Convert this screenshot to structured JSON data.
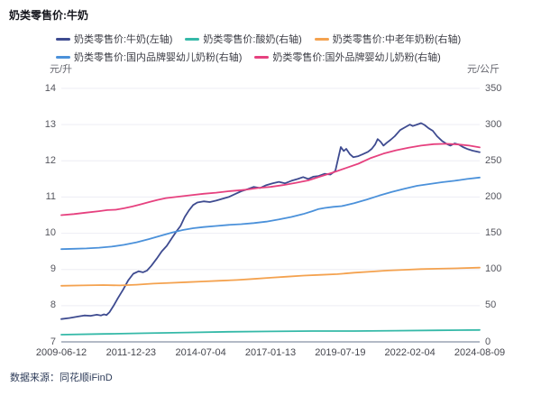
{
  "title": "奶类零售价:牛奶",
  "footer": "数据来源：同花顺iFinD",
  "chart_data": {
    "type": "line",
    "title": "奶类零售价:牛奶",
    "legend_position": "top-left, two rows",
    "grid": true,
    "left_axis": {
      "unit": "元/升",
      "min": 7,
      "max": 14,
      "ticks": [
        14,
        13,
        12,
        11,
        10,
        9,
        8,
        7
      ]
    },
    "right_axis": {
      "unit": "元/公斤",
      "min": 0,
      "max": 350,
      "ticks": [
        350,
        300,
        250,
        200,
        150,
        100,
        50,
        0
      ]
    },
    "x_ticks": [
      "2009-06-12",
      "2011-12-23",
      "2014-07-04",
      "2017-01-13",
      "2019-07-19",
      "2022-02-04",
      "2024-08-09"
    ],
    "x_range_note": "t is fraction of span 2009-06-12 .. 2024-08-09",
    "series": [
      {
        "name": "奶类零售价:牛奶(左轴)",
        "axis": "left",
        "color": "#3e4b90",
        "points": [
          [
            0,
            7.63
          ],
          [
            0.02,
            7.66
          ],
          [
            0.04,
            7.7
          ],
          [
            0.055,
            7.73
          ],
          [
            0.07,
            7.72
          ],
          [
            0.085,
            7.75
          ],
          [
            0.095,
            7.73
          ],
          [
            0.102,
            7.76
          ],
          [
            0.108,
            7.74
          ],
          [
            0.115,
            7.82
          ],
          [
            0.125,
            8.0
          ],
          [
            0.135,
            8.2
          ],
          [
            0.148,
            8.45
          ],
          [
            0.16,
            8.7
          ],
          [
            0.172,
            8.88
          ],
          [
            0.185,
            8.95
          ],
          [
            0.195,
            8.92
          ],
          [
            0.205,
            8.97
          ],
          [
            0.215,
            9.1
          ],
          [
            0.228,
            9.3
          ],
          [
            0.24,
            9.5
          ],
          [
            0.252,
            9.65
          ],
          [
            0.265,
            9.88
          ],
          [
            0.275,
            10.05
          ],
          [
            0.285,
            10.2
          ],
          [
            0.295,
            10.45
          ],
          [
            0.305,
            10.63
          ],
          [
            0.315,
            10.78
          ],
          [
            0.325,
            10.85
          ],
          [
            0.34,
            10.88
          ],
          [
            0.355,
            10.86
          ],
          [
            0.37,
            10.9
          ],
          [
            0.385,
            10.95
          ],
          [
            0.4,
            11.0
          ],
          [
            0.415,
            11.08
          ],
          [
            0.43,
            11.16
          ],
          [
            0.446,
            11.22
          ],
          [
            0.46,
            11.28
          ],
          [
            0.475,
            11.25
          ],
          [
            0.49,
            11.33
          ],
          [
            0.505,
            11.38
          ],
          [
            0.52,
            11.42
          ],
          [
            0.535,
            11.38
          ],
          [
            0.55,
            11.45
          ],
          [
            0.565,
            11.5
          ],
          [
            0.578,
            11.55
          ],
          [
            0.59,
            11.5
          ],
          [
            0.602,
            11.56
          ],
          [
            0.615,
            11.58
          ],
          [
            0.629,
            11.64
          ],
          [
            0.643,
            11.62
          ],
          [
            0.655,
            11.72
          ],
          [
            0.662,
            12.08
          ],
          [
            0.668,
            12.38
          ],
          [
            0.675,
            12.27
          ],
          [
            0.681,
            12.33
          ],
          [
            0.69,
            12.18
          ],
          [
            0.698,
            12.1
          ],
          [
            0.71,
            12.13
          ],
          [
            0.72,
            12.18
          ],
          [
            0.733,
            12.25
          ],
          [
            0.742,
            12.33
          ],
          [
            0.75,
            12.45
          ],
          [
            0.756,
            12.6
          ],
          [
            0.763,
            12.53
          ],
          [
            0.77,
            12.42
          ],
          [
            0.778,
            12.5
          ],
          [
            0.787,
            12.58
          ],
          [
            0.797,
            12.68
          ],
          [
            0.81,
            12.85
          ],
          [
            0.822,
            12.93
          ],
          [
            0.833,
            13.0
          ],
          [
            0.84,
            12.96
          ],
          [
            0.85,
            13.0
          ],
          [
            0.86,
            13.04
          ],
          [
            0.868,
            12.99
          ],
          [
            0.878,
            12.9
          ],
          [
            0.888,
            12.83
          ],
          [
            0.898,
            12.68
          ],
          [
            0.91,
            12.55
          ],
          [
            0.922,
            12.46
          ],
          [
            0.93,
            12.42
          ],
          [
            0.94,
            12.48
          ],
          [
            0.95,
            12.45
          ],
          [
            0.96,
            12.38
          ],
          [
            0.972,
            12.32
          ],
          [
            0.983,
            12.28
          ],
          [
            1,
            12.24
          ]
        ]
      },
      {
        "name": "奶类零售价:酸奶(右轴)",
        "axis": "right",
        "color": "#35b9a8",
        "points": [
          [
            0,
            10
          ],
          [
            0.1,
            11
          ],
          [
            0.2,
            12
          ],
          [
            0.3,
            13
          ],
          [
            0.4,
            14
          ],
          [
            0.5,
            14.5
          ],
          [
            0.6,
            15
          ],
          [
            0.7,
            15
          ],
          [
            0.8,
            15.5
          ],
          [
            0.9,
            16
          ],
          [
            1,
            16.5
          ]
        ]
      },
      {
        "name": "奶类零售价:中老年奶粉(右轴)",
        "axis": "right",
        "color": "#f4a24f",
        "points": [
          [
            0,
            77.5
          ],
          [
            0.05,
            78
          ],
          [
            0.1,
            78.5
          ],
          [
            0.14,
            78
          ],
          [
            0.18,
            79
          ],
          [
            0.22,
            80.5
          ],
          [
            0.26,
            81.5
          ],
          [
            0.3,
            82.5
          ],
          [
            0.34,
            83.5
          ],
          [
            0.38,
            84.5
          ],
          [
            0.42,
            85.5
          ],
          [
            0.46,
            87
          ],
          [
            0.5,
            88.5
          ],
          [
            0.54,
            90
          ],
          [
            0.58,
            91.5
          ],
          [
            0.62,
            92.5
          ],
          [
            0.66,
            93.5
          ],
          [
            0.7,
            95.5
          ],
          [
            0.74,
            97
          ],
          [
            0.78,
            98.5
          ],
          [
            0.82,
            99.5
          ],
          [
            0.86,
            100.5
          ],
          [
            0.9,
            101
          ],
          [
            0.94,
            101.5
          ],
          [
            1,
            102.5
          ]
        ]
      },
      {
        "name": "奶类零售价:国内品牌婴幼儿奶粉(右轴)",
        "axis": "right",
        "color": "#4b91da",
        "points": [
          [
            0,
            128
          ],
          [
            0.03,
            128.5
          ],
          [
            0.06,
            129
          ],
          [
            0.09,
            130
          ],
          [
            0.12,
            131.5
          ],
          [
            0.15,
            134
          ],
          [
            0.18,
            137.5
          ],
          [
            0.21,
            142
          ],
          [
            0.24,
            147
          ],
          [
            0.265,
            151
          ],
          [
            0.29,
            154.5
          ],
          [
            0.315,
            157
          ],
          [
            0.34,
            158.5
          ],
          [
            0.37,
            160
          ],
          [
            0.4,
            161.5
          ],
          [
            0.43,
            162.5
          ],
          [
            0.46,
            164
          ],
          [
            0.49,
            166
          ],
          [
            0.52,
            169
          ],
          [
            0.55,
            172.5
          ],
          [
            0.578,
            176.5
          ],
          [
            0.6,
            180.5
          ],
          [
            0.615,
            183.5
          ],
          [
            0.63,
            185
          ],
          [
            0.65,
            186.5
          ],
          [
            0.67,
            187.5
          ],
          [
            0.7,
            191.5
          ],
          [
            0.73,
            196.5
          ],
          [
            0.76,
            202
          ],
          [
            0.79,
            207
          ],
          [
            0.82,
            211.5
          ],
          [
            0.85,
            215.5
          ],
          [
            0.88,
            218
          ],
          [
            0.91,
            220.5
          ],
          [
            0.94,
            222.5
          ],
          [
            0.97,
            225
          ],
          [
            1,
            227
          ]
        ]
      },
      {
        "name": "奶类零售价:国外品牌婴幼儿奶粉(右轴)",
        "axis": "right",
        "color": "#e6417f",
        "points": [
          [
            0,
            175
          ],
          [
            0.03,
            176.5
          ],
          [
            0.06,
            178.5
          ],
          [
            0.09,
            180.5
          ],
          [
            0.11,
            182
          ],
          [
            0.13,
            182.5
          ],
          [
            0.15,
            184.5
          ],
          [
            0.17,
            187
          ],
          [
            0.19,
            190
          ],
          [
            0.21,
            193
          ],
          [
            0.23,
            196
          ],
          [
            0.25,
            198.5
          ],
          [
            0.28,
            200.5
          ],
          [
            0.31,
            202.5
          ],
          [
            0.34,
            204.5
          ],
          [
            0.37,
            206
          ],
          [
            0.4,
            208
          ],
          [
            0.43,
            209.5
          ],
          [
            0.446,
            210.5
          ],
          [
            0.47,
            212.5
          ],
          [
            0.5,
            214
          ],
          [
            0.53,
            216.5
          ],
          [
            0.56,
            219.5
          ],
          [
            0.59,
            223
          ],
          [
            0.62,
            228.5
          ],
          [
            0.65,
            234
          ],
          [
            0.68,
            240
          ],
          [
            0.71,
            246
          ],
          [
            0.74,
            254
          ],
          [
            0.77,
            260
          ],
          [
            0.8,
            264.5
          ],
          [
            0.83,
            268
          ],
          [
            0.86,
            271
          ],
          [
            0.89,
            273
          ],
          [
            0.92,
            273.5
          ],
          [
            0.95,
            272.5
          ],
          [
            0.975,
            271
          ],
          [
            1,
            268.5
          ]
        ]
      }
    ],
    "colors": {
      "grid_line": "#ededf4",
      "axis_line": "#b3bac6",
      "tick_text": "#55565e",
      "title_text": "#14151c",
      "footer_text": "#2e3c59"
    }
  }
}
